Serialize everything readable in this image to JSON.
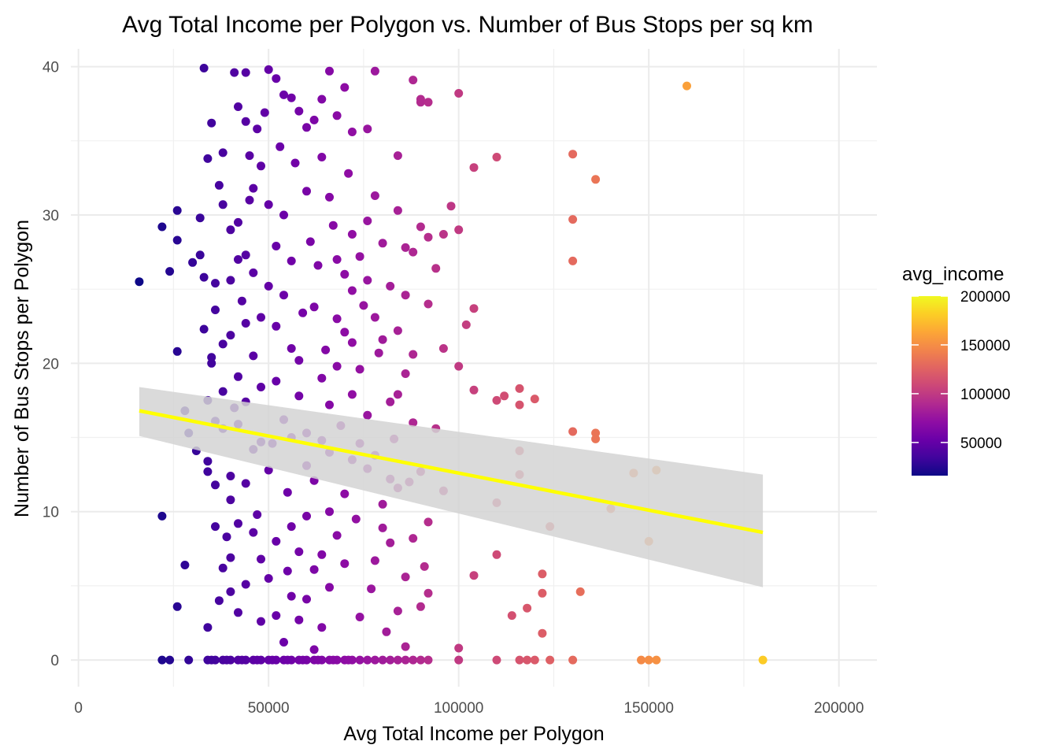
{
  "chart_data": {
    "type": "scatter",
    "title": "Avg Total Income per Polygon vs. Number of Bus Stops per sq km",
    "xlabel": "Avg Total Income per Polygon",
    "ylabel": "Number of Bus Stops per Polygon",
    "xlim": [
      -2000,
      210000
    ],
    "ylim": [
      -1.8,
      41.2
    ],
    "x_ticks": [
      0,
      50000,
      100000,
      150000,
      200000
    ],
    "x_tick_labels": [
      "0",
      "50000",
      "100000",
      "150000",
      "200000"
    ],
    "y_ticks": [
      0,
      10,
      20,
      30,
      40
    ],
    "y_tick_labels": [
      "0",
      "10",
      "20",
      "30",
      "40"
    ],
    "grid": true,
    "legend": {
      "title": "avg_income",
      "placement": "right",
      "range": [
        16000,
        200000
      ],
      "ticks": [
        50000,
        100000,
        150000,
        200000
      ],
      "tick_labels": [
        "50000",
        "100000",
        "150000",
        "200000"
      ],
      "palette": [
        "#0d0887",
        "#41049d",
        "#6a00a8",
        "#8f0da4",
        "#b12a90",
        "#cc4778",
        "#e16462",
        "#f2844b",
        "#fca636",
        "#fcce25",
        "#f0f921"
      ]
    },
    "color_by": "x",
    "trend": {
      "method": "lm",
      "color": "#ffff00",
      "band_color": "#d3d3d3",
      "x_range": [
        16000,
        180000
      ],
      "fit": [
        [
          16000,
          16.8
        ],
        [
          180000,
          8.6
        ]
      ],
      "ci_upper": [
        [
          16000,
          18.4
        ],
        [
          180000,
          12.5
        ]
      ],
      "ci_lower": [
        [
          16000,
          15.1
        ],
        [
          180000,
          4.9
        ]
      ]
    },
    "points": [
      [
        16000,
        25.5
      ],
      [
        22000,
        29.2
      ],
      [
        22000,
        9.7
      ],
      [
        24000,
        26.2
      ],
      [
        26000,
        30.3
      ],
      [
        26000,
        28.3
      ],
      [
        26000,
        20.8
      ],
      [
        26000,
        3.6
      ],
      [
        28000,
        6.4
      ],
      [
        28000,
        16.8
      ],
      [
        29000,
        15.3
      ],
      [
        33000,
        39.9
      ],
      [
        34000,
        33.8
      ],
      [
        35000,
        36.2
      ],
      [
        37000,
        32.0
      ],
      [
        38000,
        34.2
      ],
      [
        41000,
        39.6
      ],
      [
        42000,
        37.3
      ],
      [
        44000,
        39.6
      ],
      [
        45000,
        34.0
      ],
      [
        47000,
        35.8
      ],
      [
        50000,
        39.8
      ],
      [
        52000,
        39.2
      ],
      [
        54000,
        38.1
      ],
      [
        56000,
        37.9
      ],
      [
        58000,
        37.0
      ],
      [
        60000,
        35.9
      ],
      [
        62000,
        36.4
      ],
      [
        64000,
        37.8
      ],
      [
        66000,
        39.7
      ],
      [
        68000,
        36.7
      ],
      [
        70000,
        38.6
      ],
      [
        72000,
        35.6
      ],
      [
        76000,
        35.8
      ],
      [
        78000,
        39.7
      ],
      [
        84000,
        34.0
      ],
      [
        88000,
        39.1
      ],
      [
        90000,
        37.6
      ],
      [
        90000,
        37.8
      ],
      [
        92000,
        37.6
      ],
      [
        100000,
        38.2
      ],
      [
        104000,
        33.2
      ],
      [
        110000,
        33.9
      ],
      [
        130000,
        34.1
      ],
      [
        136000,
        32.4
      ],
      [
        130000,
        29.7
      ],
      [
        130000,
        26.9
      ],
      [
        160000,
        38.7
      ],
      [
        98000,
        30.6
      ],
      [
        100000,
        29.0
      ],
      [
        96000,
        28.7
      ],
      [
        92000,
        28.5
      ],
      [
        88000,
        27.5
      ],
      [
        102000,
        22.6
      ],
      [
        104000,
        23.7
      ],
      [
        100000,
        19.8
      ],
      [
        104000,
        18.2
      ],
      [
        110000,
        17.5
      ],
      [
        112000,
        17.8
      ],
      [
        116000,
        18.3
      ],
      [
        116000,
        17.2
      ],
      [
        120000,
        17.6
      ],
      [
        130000,
        15.4
      ],
      [
        136000,
        15.3
      ],
      [
        136000,
        14.9
      ],
      [
        116000,
        14.1
      ],
      [
        116000,
        12.5
      ],
      [
        110000,
        10.6
      ],
      [
        124000,
        9.0
      ],
      [
        110000,
        7.1
      ],
      [
        104000,
        5.7
      ],
      [
        122000,
        5.8
      ],
      [
        122000,
        4.5
      ],
      [
        132000,
        4.6
      ],
      [
        114000,
        3.0
      ],
      [
        118000,
        3.5
      ],
      [
        122000,
        1.8
      ],
      [
        100000,
        0.8
      ],
      [
        146000,
        12.6
      ],
      [
        152000,
        12.8
      ],
      [
        140000,
        10.2
      ],
      [
        150000,
        8.0
      ],
      [
        180000,
        0
      ],
      [
        148000,
        0
      ],
      [
        150000,
        0
      ],
      [
        152000,
        0
      ],
      [
        22000,
        0
      ],
      [
        24000,
        0
      ],
      [
        29000,
        0
      ],
      [
        110000,
        0
      ],
      [
        116000,
        0
      ],
      [
        118000,
        0
      ],
      [
        120000,
        0
      ],
      [
        124000,
        0
      ],
      [
        130000,
        0
      ],
      [
        100000,
        0
      ],
      [
        34000,
        2.2
      ],
      [
        38000,
        6.2
      ],
      [
        40000,
        4.6
      ],
      [
        42000,
        3.2
      ],
      [
        36000,
        9.0
      ],
      [
        34000,
        13.4
      ],
      [
        34000,
        12.7
      ],
      [
        31000,
        14.1
      ],
      [
        33000,
        22.3
      ],
      [
        35000,
        20.4
      ],
      [
        38000,
        18.1
      ],
      [
        36000,
        23.6
      ],
      [
        40000,
        25.6
      ],
      [
        44000,
        27.3
      ],
      [
        42000,
        29.5
      ],
      [
        46000,
        31.8
      ],
      [
        36000,
        25.4
      ],
      [
        32000,
        27.3
      ],
      [
        30000,
        26.8
      ],
      [
        32000,
        29.8
      ],
      [
        38000,
        30.7
      ],
      [
        40000,
        21.9
      ],
      [
        42000,
        15.9
      ],
      [
        44000,
        11.9
      ],
      [
        46000,
        8.6
      ],
      [
        48000,
        6.8
      ],
      [
        50000,
        5.5
      ],
      [
        52000,
        3.0
      ],
      [
        54000,
        1.2
      ],
      [
        56000,
        4.3
      ],
      [
        58000,
        7.3
      ],
      [
        60000,
        9.7
      ],
      [
        62000,
        12.1
      ],
      [
        64000,
        14.8
      ],
      [
        66000,
        17.2
      ],
      [
        68000,
        19.8
      ],
      [
        70000,
        22.1
      ],
      [
        72000,
        24.9
      ],
      [
        74000,
        27.2
      ],
      [
        76000,
        29.6
      ],
      [
        78000,
        31.3
      ],
      [
        80000,
        28.1
      ],
      [
        82000,
        25.2
      ],
      [
        84000,
        22.2
      ],
      [
        86000,
        19.3
      ],
      [
        88000,
        16.0
      ],
      [
        90000,
        12.7
      ],
      [
        92000,
        9.3
      ],
      [
        86000,
        5.6
      ],
      [
        84000,
        3.3
      ],
      [
        82000,
        7.9
      ],
      [
        80000,
        10.5
      ],
      [
        78000,
        13.8
      ],
      [
        76000,
        16.5
      ],
      [
        74000,
        19.6
      ],
      [
        72000,
        21.4
      ],
      [
        70000,
        11.2
      ],
      [
        68000,
        8.4
      ],
      [
        66000,
        4.9
      ],
      [
        64000,
        2.2
      ],
      [
        62000,
        6.1
      ],
      [
        60000,
        13.1
      ],
      [
        58000,
        17.8
      ],
      [
        56000,
        21.0
      ],
      [
        54000,
        24.6
      ],
      [
        52000,
        27.9
      ],
      [
        50000,
        30.7
      ],
      [
        48000,
        33.3
      ],
      [
        46000,
        26.1
      ],
      [
        44000,
        22.7
      ],
      [
        42000,
        19.1
      ],
      [
        40000,
        12.4
      ],
      [
        38000,
        15.6
      ],
      [
        36000,
        11.8
      ],
      [
        34000,
        17.5
      ],
      [
        47000,
        9.8
      ],
      [
        51000,
        14.6
      ],
      [
        55000,
        11.3
      ],
      [
        59000,
        23.4
      ],
      [
        63000,
        26.6
      ],
      [
        67000,
        29.3
      ],
      [
        71000,
        32.8
      ],
      [
        75000,
        23.9
      ],
      [
        79000,
        20.7
      ],
      [
        83000,
        14.9
      ],
      [
        87000,
        12.0
      ],
      [
        91000,
        6.3
      ],
      [
        81000,
        1.9
      ],
      [
        77000,
        4.8
      ],
      [
        73000,
        9.5
      ],
      [
        69000,
        15.8
      ],
      [
        65000,
        20.9
      ],
      [
        61000,
        28.2
      ],
      [
        57000,
        33.5
      ],
      [
        53000,
        34.6
      ],
      [
        49000,
        36.9
      ],
      [
        45000,
        31.0
      ],
      [
        43000,
        24.2
      ],
      [
        41000,
        17.0
      ],
      [
        39000,
        8.3
      ],
      [
        37000,
        4.0
      ],
      [
        35000,
        20.0
      ],
      [
        33000,
        25.8
      ],
      [
        48000,
        18.4
      ],
      [
        52000,
        22.5
      ],
      [
        56000,
        26.9
      ],
      [
        60000,
        31.6
      ],
      [
        64000,
        33.9
      ],
      [
        68000,
        27.0
      ],
      [
        72000,
        17.9
      ],
      [
        76000,
        12.9
      ],
      [
        80000,
        8.9
      ],
      [
        84000,
        11.6
      ],
      [
        88000,
        20.6
      ],
      [
        92000,
        24.0
      ],
      [
        96000,
        21.0
      ],
      [
        94000,
        15.6
      ],
      [
        96000,
        11.4
      ],
      [
        90000,
        3.6
      ],
      [
        86000,
        0.9
      ],
      [
        58000,
        2.7
      ],
      [
        62000,
        0.7
      ],
      [
        66000,
        10.0
      ],
      [
        70000,
        6.5
      ],
      [
        74000,
        2.9
      ],
      [
        78000,
        6.7
      ],
      [
        82000,
        17.4
      ],
      [
        86000,
        27.8
      ],
      [
        90000,
        29.2
      ],
      [
        94000,
        26.4
      ],
      [
        54000,
        16.2
      ],
      [
        50000,
        12.8
      ],
      [
        46000,
        14.2
      ],
      [
        42000,
        9.2
      ],
      [
        40000,
        6.9
      ],
      [
        44000,
        5.1
      ],
      [
        48000,
        2.6
      ],
      [
        52000,
        8.0
      ],
      [
        56000,
        9.0
      ],
      [
        60000,
        15.3
      ],
      [
        64000,
        19.0
      ],
      [
        68000,
        23.0
      ],
      [
        72000,
        28.7
      ],
      [
        76000,
        25.6
      ],
      [
        80000,
        21.6
      ],
      [
        84000,
        17.9
      ],
      [
        88000,
        8.2
      ],
      [
        92000,
        4.5
      ],
      [
        70000,
        26.0
      ],
      [
        66000,
        31.2
      ],
      [
        62000,
        23.8
      ],
      [
        58000,
        20.2
      ],
      [
        54000,
        30.0
      ],
      [
        50000,
        25.2
      ],
      [
        46000,
        20.5
      ],
      [
        42000,
        27.0
      ],
      [
        38000,
        21.3
      ],
      [
        36000,
        16.1
      ],
      [
        40000,
        29.0
      ],
      [
        44000,
        36.3
      ],
      [
        48000,
        23.1
      ],
      [
        66000,
        14.0
      ],
      [
        72000,
        13.5
      ],
      [
        78000,
        23.1
      ],
      [
        84000,
        30.3
      ],
      [
        60000,
        4.1
      ],
      [
        56000,
        15.0
      ],
      [
        52000,
        18.8
      ],
      [
        48000,
        14.7
      ],
      [
        44000,
        17.4
      ],
      [
        40000,
        10.8
      ],
      [
        64000,
        7.1
      ],
      [
        74000,
        14.6
      ],
      [
        82000,
        12.2
      ],
      [
        86000,
        24.6
      ],
      [
        55000,
        6.0
      ],
      [
        34000,
        0
      ],
      [
        36000,
        0
      ],
      [
        38000,
        0
      ],
      [
        40000,
        0
      ],
      [
        42000,
        0
      ],
      [
        44000,
        0
      ],
      [
        46000,
        0
      ],
      [
        48000,
        0
      ],
      [
        50000,
        0
      ],
      [
        52000,
        0
      ],
      [
        54000,
        0
      ],
      [
        56000,
        0
      ],
      [
        58000,
        0
      ],
      [
        60000,
        0
      ],
      [
        62000,
        0
      ],
      [
        64000,
        0
      ],
      [
        66000,
        0
      ],
      [
        68000,
        0
      ],
      [
        70000,
        0
      ],
      [
        72000,
        0
      ],
      [
        74000,
        0
      ],
      [
        76000,
        0
      ],
      [
        78000,
        0
      ],
      [
        80000,
        0
      ],
      [
        82000,
        0
      ],
      [
        84000,
        0
      ],
      [
        86000,
        0
      ],
      [
        88000,
        0
      ],
      [
        90000,
        0
      ],
      [
        92000,
        0
      ],
      [
        35000,
        0
      ],
      [
        39000,
        0
      ],
      [
        43000,
        0
      ],
      [
        47000,
        0
      ],
      [
        51000,
        0
      ],
      [
        55000,
        0
      ],
      [
        59000,
        0
      ],
      [
        63000,
        0
      ],
      [
        67000,
        0
      ],
      [
        71000,
        0
      ]
    ]
  }
}
